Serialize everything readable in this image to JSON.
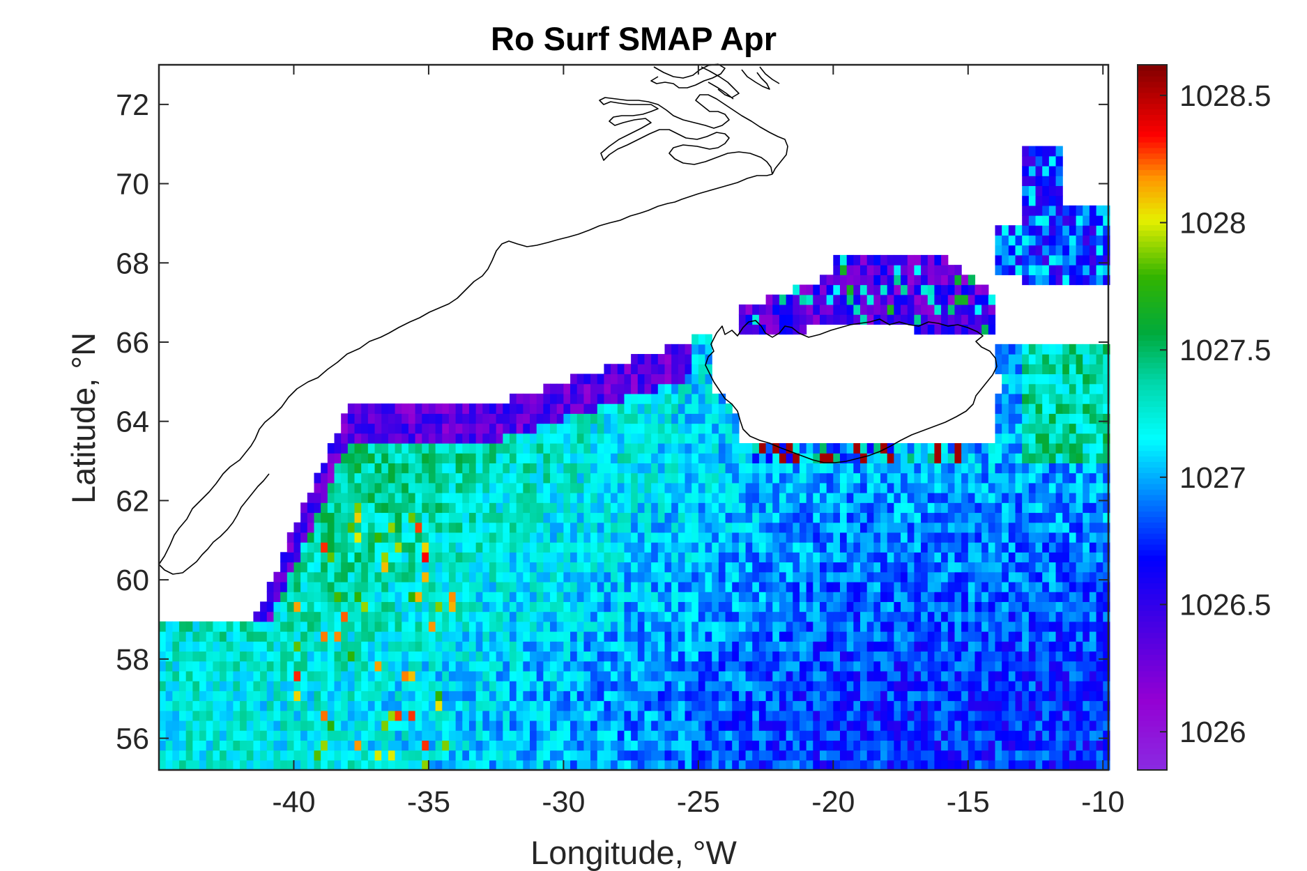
{
  "chart_data": {
    "type": "heatmap",
    "title": "Ro Surf SMAP Apr",
    "xlabel": "Longitude, °W",
    "ylabel": "Latitude, °N",
    "xlim": [
      -45,
      -9.8
    ],
    "ylim": [
      55.2,
      73
    ],
    "xticks": [
      -40,
      -35,
      -30,
      -25,
      -20,
      -15,
      -10
    ],
    "yticks": [
      56,
      58,
      60,
      62,
      64,
      66,
      68,
      70,
      72
    ],
    "colorbar": {
      "range": [
        1025.85,
        1028.62
      ],
      "ticks": [
        1026,
        1026.5,
        1027,
        1027.5,
        1028,
        1028.5
      ],
      "colormap": "jet-like (purple-blue-cyan-green-yellow-red-darkred)"
    },
    "grid_resolution_deg": [
      0.25,
      0.25
    ],
    "field_summary": {
      "west_shelf_band_near_greenland": 1026.1,
      "irminger_basin_center": 1027.3,
      "iceland_basin_south": 1026.8,
      "north_of_iceland": 1026.4,
      "iceland_south_coast_extremes": 1028.6
    },
    "land_outline": [
      "Greenland east coast",
      "Iceland"
    ]
  }
}
